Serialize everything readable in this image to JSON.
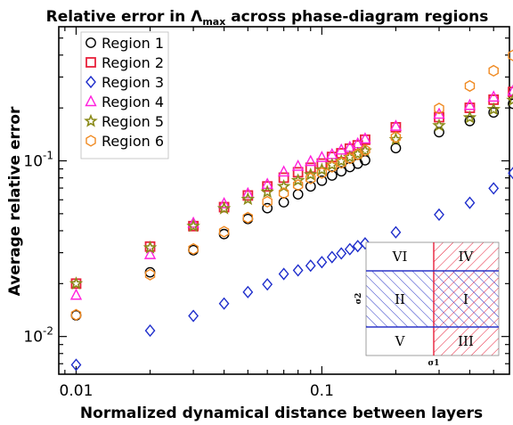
{
  "chart_data": {
    "type": "scatter",
    "title": "Relative error in Λmax across phase-diagram regions",
    "title_main": "Relative error in Λ",
    "title_sub": "max",
    "title_rest": " across phase-diagram regions",
    "xlabel": "Normalized dynamical distance between layers",
    "ylabel": "Average relative error",
    "xscale": "log",
    "yscale": "log",
    "xlim": [
      0.0085,
      0.58
    ],
    "ylim": [
      0.0061,
      0.58
    ],
    "x_ticks": [
      {
        "value": 0.01,
        "label": "0.01"
      },
      {
        "value": 0.1,
        "label": "0.1"
      }
    ],
    "y_ticks": [
      {
        "value": 0.01,
        "label": "10",
        "exp": "-2"
      },
      {
        "value": 0.1,
        "label": "10",
        "exp": "-1"
      }
    ],
    "grid": false,
    "legend_position": "top-left",
    "series": [
      {
        "name": "Region 1",
        "marker": "circle",
        "color": "#000000",
        "x": [
          0.01,
          0.02,
          0.03,
          0.04,
          0.05,
          0.06,
          0.07,
          0.08,
          0.09,
          0.1,
          0.11,
          0.12,
          0.13,
          0.14,
          0.15,
          0.2,
          0.3,
          0.4,
          0.5,
          0.6
        ],
        "y": [
          0.0132,
          0.0232,
          0.031,
          0.0383,
          0.0467,
          0.0538,
          0.0581,
          0.0645,
          0.0715,
          0.0771,
          0.0825,
          0.0872,
          0.0922,
          0.0964,
          0.1008,
          0.1182,
          0.1457,
          0.1686,
          0.1885,
          0.2113
        ]
      },
      {
        "name": "Region 2",
        "marker": "square",
        "color": "#e8203a",
        "x": [
          0.01,
          0.02,
          0.03,
          0.04,
          0.05,
          0.06,
          0.07,
          0.08,
          0.09,
          0.1,
          0.11,
          0.12,
          0.13,
          0.14,
          0.15,
          0.2,
          0.3,
          0.4,
          0.5,
          0.6
        ],
        "y": [
          0.02,
          0.0325,
          0.0425,
          0.0545,
          0.0635,
          0.0715,
          0.0802,
          0.0861,
          0.0913,
          0.0965,
          0.1052,
          0.1104,
          0.1173,
          0.1225,
          0.1319,
          0.1552,
          0.1772,
          0.2003,
          0.2229,
          0.2468
        ]
      },
      {
        "name": "Region 3",
        "marker": "diamond",
        "color": "#1f2ecc",
        "x": [
          0.01,
          0.02,
          0.03,
          0.04,
          0.05,
          0.06,
          0.07,
          0.08,
          0.09,
          0.1,
          0.11,
          0.12,
          0.13,
          0.14,
          0.15,
          0.2,
          0.3,
          0.4,
          0.5,
          0.6
        ],
        "y": [
          0.0069,
          0.0108,
          0.0131,
          0.0154,
          0.0179,
          0.0198,
          0.0227,
          0.0238,
          0.0253,
          0.0265,
          0.0283,
          0.0297,
          0.0314,
          0.0327,
          0.0339,
          0.0392,
          0.0494,
          0.0577,
          0.0697,
          0.0852
        ]
      },
      {
        "name": "Region 4",
        "marker": "triangle",
        "color": "#ff22dd",
        "x": [
          0.01,
          0.02,
          0.03,
          0.04,
          0.05,
          0.06,
          0.07,
          0.08,
          0.09,
          0.1,
          0.11,
          0.12,
          0.13,
          0.14,
          0.15,
          0.2,
          0.3,
          0.4,
          0.5,
          0.6
        ],
        "y": [
          0.0172,
          0.0293,
          0.0442,
          0.0571,
          0.0651,
          0.0736,
          0.0865,
          0.0932,
          0.0993,
          0.1046,
          0.1086,
          0.1153,
          0.1194,
          0.1253,
          0.1335,
          0.1575,
          0.1845,
          0.2069,
          0.2309,
          0.2497
        ]
      },
      {
        "name": "Region 5",
        "marker": "star",
        "color": "#8a8a18",
        "x": [
          0.01,
          0.02,
          0.03,
          0.04,
          0.05,
          0.06,
          0.07,
          0.08,
          0.09,
          0.1,
          0.11,
          0.12,
          0.13,
          0.14,
          0.15,
          0.2,
          0.3,
          0.4,
          0.5,
          0.6
        ],
        "y": [
          0.02,
          0.032,
          0.0425,
          0.0535,
          0.0605,
          0.0665,
          0.0715,
          0.0773,
          0.0834,
          0.0889,
          0.0948,
          0.0995,
          0.1048,
          0.1094,
          0.1141,
          0.1324,
          0.1588,
          0.1762,
          0.1962,
          0.2216
        ]
      },
      {
        "name": "Region 6",
        "marker": "hexagon",
        "color": "#f08a22",
        "x": [
          0.01,
          0.02,
          0.03,
          0.04,
          0.05,
          0.06,
          0.07,
          0.08,
          0.09,
          0.1,
          0.11,
          0.12,
          0.13,
          0.14,
          0.15,
          0.2,
          0.3,
          0.4,
          0.5,
          0.6
        ],
        "y": [
          0.0133,
          0.0225,
          0.0315,
          0.0395,
          0.0475,
          0.0585,
          0.0655,
          0.0728,
          0.0794,
          0.0853,
          0.0924,
          0.0974,
          0.1032,
          0.1087,
          0.1149,
          0.1362,
          0.1986,
          0.2668,
          0.3257,
          0.3984
        ]
      }
    ],
    "inset": {
      "x_axis_label": "σ1",
      "y_axis_label": "σ2",
      "regions": {
        "r1": "I",
        "r2": "II",
        "r3": "III",
        "r4": "IV",
        "r5": "V",
        "r6": "VI"
      }
    }
  }
}
